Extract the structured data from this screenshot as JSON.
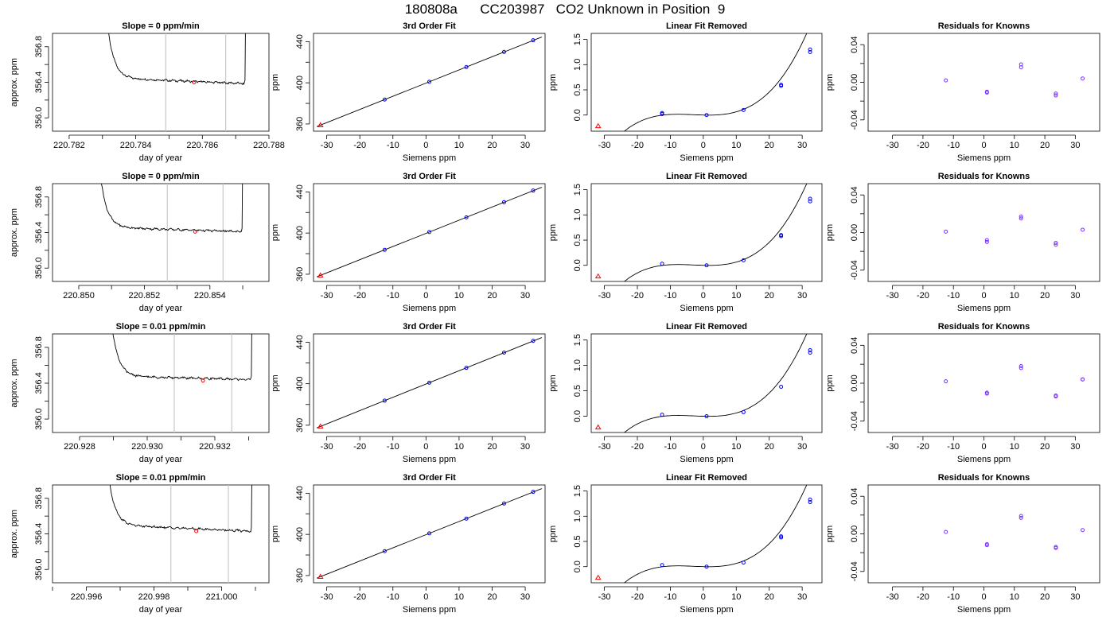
{
  "page": {
    "title": "180808a      CC203987   CO2 Unknown in Position  9"
  },
  "colors": {
    "background": "#ffffff",
    "trace": "#000000",
    "unknown_marker": "#ff0000",
    "known_marker": "#0000ff",
    "residual_marker": "#7a33ff",
    "window_lines": "#c8c8c8"
  },
  "chart_data": [
    {
      "type": "line",
      "row": 1,
      "panel": "timeseries",
      "title": "Slope =  0  ppm/min",
      "xlabel": "day of year",
      "ylabel": "approx. ppm",
      "xlim": [
        220.7815,
        220.788
      ],
      "ylim": [
        355.85,
        356.95
      ],
      "xticks": [
        "220.782",
        "220.784",
        "220.786",
        "220.788"
      ],
      "yticks": [
        "356.0",
        "356.4",
        "356.8"
      ],
      "trace": {
        "start": 220.7831,
        "end": 220.7873,
        "baseline_start": 356.45,
        "baseline_end": 356.385,
        "rise_start": 356.95,
        "rise_end": 356.95
      },
      "window": [
        220.7849,
        220.7867
      ],
      "marker": {
        "x": 220.78575,
        "y": 356.4,
        "color": "red"
      }
    },
    {
      "type": "scatter",
      "row": 1,
      "panel": "fit",
      "title": "3rd Order Fit",
      "xlabel": "Siemens ppm",
      "ylabel": "ppm",
      "xlim": [
        -34,
        36
      ],
      "ylim": [
        353,
        448
      ],
      "xticks": [
        -30,
        -20,
        -10,
        0,
        10,
        20,
        30
      ],
      "yticks": [
        360,
        400,
        440
      ],
      "fit_range": [
        -33,
        35
      ],
      "fit_line": {
        "intercept": 399.7,
        "slope": 1.28
      },
      "knowns": {
        "x": [
          -12.5,
          1.0,
          12.2,
          23.6,
          32.4
        ],
        "y": [
          383.7,
          401.0,
          415.3,
          430.0,
          441.3
        ]
      },
      "unknown": {
        "x": -31.9,
        "y": 358.8
      }
    },
    {
      "type": "scatter",
      "row": 1,
      "panel": "linear_removed",
      "title": "Linear Fit Removed",
      "xlabel": "Siemens ppm",
      "ylabel": "ppm",
      "xlim": [
        -34,
        36
      ],
      "ylim": [
        -0.32,
        1.62
      ],
      "xticks": [
        -30,
        -20,
        -10,
        0,
        10,
        20,
        30
      ],
      "yticks": [
        "0.0",
        "0.5",
        "1.0",
        "1.5"
      ],
      "fit_range": [
        -33,
        35
      ],
      "knowns": {
        "x": [
          -12.5,
          -12.5,
          1.0,
          12.2,
          23.6,
          23.6,
          32.4,
          32.4
        ],
        "y": [
          0.04,
          0.02,
          0.0,
          0.1,
          0.58,
          0.6,
          1.25,
          1.3
        ]
      },
      "unknown": {
        "x": -31.9,
        "y": -0.22
      }
    },
    {
      "type": "scatter",
      "row": 1,
      "panel": "residuals",
      "title": "Residuals for Knowns",
      "xlabel": "Siemens ppm",
      "ylabel": "ppm",
      "xlim": [
        -38,
        38
      ],
      "ylim": [
        -0.052,
        0.052
      ],
      "xticks": [
        -30,
        -20,
        -10,
        0,
        10,
        20,
        30
      ],
      "yticks": [
        "-0.04",
        "0.00",
        "0.04"
      ],
      "residuals": {
        "x": [
          -12.5,
          1.0,
          1.0,
          12.2,
          12.2,
          23.6,
          23.6,
          32.4
        ],
        "y": [
          0.002,
          -0.01,
          -0.011,
          0.019,
          0.016,
          -0.012,
          -0.014,
          0.004
        ]
      }
    },
    {
      "type": "line",
      "row": 2,
      "panel": "timeseries",
      "title": "Slope =  0  ppm/min",
      "xlabel": "day of year",
      "ylabel": "approx. ppm",
      "xlim": [
        220.8492,
        220.8558
      ],
      "ylim": [
        355.85,
        356.95
      ],
      "xticks": [
        "220.850",
        "220.852",
        "220.854"
      ],
      "yticks": [
        "356.0",
        "356.4",
        "356.8"
      ],
      "trace": {
        "start": 220.8506,
        "end": 220.855,
        "baseline_start": 356.46,
        "baseline_end": 356.41,
        "rise_start": 356.95,
        "rise_end": 356.95
      },
      "window": [
        220.8527,
        220.8544
      ],
      "marker": {
        "x": 220.85355,
        "y": 356.41,
        "color": "red"
      }
    },
    {
      "type": "scatter",
      "row": 2,
      "panel": "fit",
      "title": "3rd Order Fit",
      "xlabel": "Siemens ppm",
      "ylabel": "ppm",
      "xlim": [
        -34,
        36
      ],
      "ylim": [
        353,
        448
      ],
      "xticks": [
        -30,
        -20,
        -10,
        0,
        10,
        20,
        30
      ],
      "yticks": [
        360,
        400,
        440
      ],
      "fit_range": [
        -33,
        35
      ],
      "fit_line": {
        "intercept": 399.7,
        "slope": 1.28
      },
      "knowns": {
        "x": [
          -12.5,
          1.0,
          12.2,
          23.6,
          32.4
        ],
        "y": [
          383.7,
          401.0,
          415.3,
          430.0,
          441.3
        ]
      },
      "unknown": {
        "x": -31.9,
        "y": 358.8
      }
    },
    {
      "type": "scatter",
      "row": 2,
      "panel": "linear_removed",
      "title": "Linear Fit Removed",
      "xlabel": "Siemens ppm",
      "ylabel": "ppm",
      "xlim": [
        -34,
        36
      ],
      "ylim": [
        -0.32,
        1.62
      ],
      "xticks": [
        -30,
        -20,
        -10,
        0,
        10,
        20,
        30
      ],
      "yticks": [
        "0.0",
        "0.5",
        "1.0",
        "1.5"
      ],
      "fit_range": [
        -33,
        35
      ],
      "knowns": {
        "x": [
          -12.5,
          1.0,
          12.2,
          23.6,
          23.6,
          32.4,
          32.4
        ],
        "y": [
          0.03,
          0.0,
          0.1,
          0.58,
          0.6,
          1.27,
          1.32
        ]
      },
      "unknown": {
        "x": -31.9,
        "y": -0.22
      }
    },
    {
      "type": "scatter",
      "row": 2,
      "panel": "residuals",
      "title": "Residuals for Knowns",
      "xlabel": "Siemens ppm",
      "ylabel": "ppm",
      "xlim": [
        -38,
        38
      ],
      "ylim": [
        -0.052,
        0.052
      ],
      "xticks": [
        -30,
        -20,
        -10,
        0,
        10,
        20,
        30
      ],
      "yticks": [
        "-0.04",
        "0.00",
        "0.04"
      ],
      "residuals": {
        "x": [
          -12.5,
          1.0,
          1.0,
          12.2,
          12.2,
          23.6,
          23.6,
          32.4
        ],
        "y": [
          0.001,
          -0.008,
          -0.01,
          0.017,
          0.015,
          -0.011,
          -0.013,
          0.003
        ]
      }
    },
    {
      "type": "line",
      "row": 3,
      "panel": "timeseries",
      "title": "Slope =  0.01  ppm/min",
      "xlabel": "day of year",
      "ylabel": "approx. ppm",
      "xlim": [
        220.9272,
        220.9336
      ],
      "ylim": [
        355.85,
        356.95
      ],
      "xticks": [
        "220.928",
        "220.930",
        "220.932"
      ],
      "yticks": [
        "356.0",
        "356.4",
        "356.8"
      ],
      "trace": {
        "start": 220.9289,
        "end": 220.9331,
        "baseline_start": 356.48,
        "baseline_end": 356.44,
        "rise_start": 356.95,
        "rise_end": 356.95
      },
      "window": [
        220.9308,
        220.9325
      ],
      "marker": {
        "x": 220.93165,
        "y": 356.43,
        "color": "red"
      }
    },
    {
      "type": "scatter",
      "row": 3,
      "panel": "fit",
      "title": "3rd Order Fit",
      "xlabel": "Siemens ppm",
      "ylabel": "ppm",
      "xlim": [
        -34,
        36
      ],
      "ylim": [
        353,
        448
      ],
      "xticks": [
        -30,
        -20,
        -10,
        0,
        10,
        20,
        30
      ],
      "yticks": [
        360,
        400,
        440
      ],
      "fit_range": [
        -33,
        35
      ],
      "fit_line": {
        "intercept": 399.7,
        "slope": 1.28
      },
      "knowns": {
        "x": [
          -12.5,
          1.0,
          12.2,
          23.6,
          32.4
        ],
        "y": [
          383.7,
          401.0,
          415.3,
          430.0,
          441.3
        ]
      },
      "unknown": {
        "x": -31.9,
        "y": 358.8
      }
    },
    {
      "type": "scatter",
      "row": 3,
      "panel": "linear_removed",
      "title": "Linear Fit Removed",
      "xlabel": "Siemens ppm",
      "ylabel": "ppm",
      "xlim": [
        -34,
        36
      ],
      "ylim": [
        -0.32,
        1.62
      ],
      "xticks": [
        -30,
        -20,
        -10,
        0,
        10,
        20,
        30
      ],
      "yticks": [
        "0.0",
        "0.5",
        "1.0",
        "1.5"
      ],
      "fit_range": [
        -33,
        35
      ],
      "knowns": {
        "x": [
          -12.5,
          1.0,
          12.2,
          23.6,
          32.4,
          32.4
        ],
        "y": [
          0.03,
          0.0,
          0.08,
          0.58,
          1.25,
          1.3
        ]
      },
      "unknown": {
        "x": -31.9,
        "y": -0.22
      }
    },
    {
      "type": "scatter",
      "row": 3,
      "panel": "residuals",
      "title": "Residuals for Knowns",
      "xlabel": "Siemens ppm",
      "ylabel": "ppm",
      "xlim": [
        -38,
        38
      ],
      "ylim": [
        -0.052,
        0.052
      ],
      "xticks": [
        -30,
        -20,
        -10,
        0,
        10,
        20,
        30
      ],
      "yticks": [
        "-0.04",
        "0.00",
        "0.04"
      ],
      "residuals": {
        "x": [
          -12.5,
          1.0,
          1.0,
          12.2,
          12.2,
          23.6,
          23.6,
          32.4,
          32.4
        ],
        "y": [
          0.002,
          -0.01,
          -0.011,
          0.018,
          0.016,
          -0.013,
          -0.014,
          0.004,
          0.004
        ]
      }
    },
    {
      "type": "line",
      "row": 4,
      "panel": "timeseries",
      "title": "Slope =  0.01  ppm/min",
      "xlabel": "day of year",
      "ylabel": "approx. ppm",
      "xlim": [
        220.995,
        221.0014
      ],
      "ylim": [
        355.85,
        356.95
      ],
      "xticks": [
        "220.996",
        "220.998",
        "221.000"
      ],
      "yticks": [
        "356.0",
        "356.4",
        "356.8"
      ],
      "trace": {
        "start": 220.9966,
        "end": 221.0009,
        "baseline_start": 356.5,
        "baseline_end": 356.43,
        "rise_start": 356.95,
        "rise_end": 356.95
      },
      "window": [
        220.9985,
        221.0002
      ],
      "marker": {
        "x": 220.99925,
        "y": 356.43,
        "color": "red"
      }
    },
    {
      "type": "scatter",
      "row": 4,
      "panel": "fit",
      "title": "3rd Order Fit",
      "xlabel": "Siemens ppm",
      "ylabel": "ppm",
      "xlim": [
        -34,
        36
      ],
      "ylim": [
        353,
        448
      ],
      "xticks": [
        -30,
        -20,
        -10,
        0,
        10,
        20,
        30
      ],
      "yticks": [
        360,
        400,
        440
      ],
      "fit_range": [
        -33,
        35
      ],
      "fit_line": {
        "intercept": 399.7,
        "slope": 1.28
      },
      "knowns": {
        "x": [
          -12.5,
          1.0,
          12.2,
          23.6,
          32.4
        ],
        "y": [
          383.7,
          401.0,
          415.3,
          430.0,
          441.3
        ]
      },
      "unknown": {
        "x": -31.9,
        "y": 358.8
      }
    },
    {
      "type": "scatter",
      "row": 4,
      "panel": "linear_removed",
      "title": "Linear Fit Removed",
      "xlabel": "Siemens ppm",
      "ylabel": "ppm",
      "xlim": [
        -34,
        36
      ],
      "ylim": [
        -0.32,
        1.62
      ],
      "xticks": [
        -30,
        -20,
        -10,
        0,
        10,
        20,
        30
      ],
      "yticks": [
        "0.0",
        "0.5",
        "1.0",
        "1.5"
      ],
      "fit_range": [
        -33,
        35
      ],
      "knowns": {
        "x": [
          -12.5,
          1.0,
          12.2,
          23.6,
          23.6,
          32.4,
          32.4
        ],
        "y": [
          0.03,
          0.0,
          0.08,
          0.58,
          0.6,
          1.28,
          1.33
        ]
      },
      "unknown": {
        "x": -31.9,
        "y": -0.22
      }
    },
    {
      "type": "scatter",
      "row": 4,
      "panel": "residuals",
      "title": "Residuals for Knowns",
      "xlabel": "Siemens ppm",
      "ylabel": "ppm",
      "xlim": [
        -38,
        38
      ],
      "ylim": [
        -0.052,
        0.052
      ],
      "xticks": [
        -30,
        -20,
        -10,
        0,
        10,
        20,
        30
      ],
      "yticks": [
        "-0.04",
        "0.00",
        "0.04"
      ],
      "residuals": {
        "x": [
          -12.5,
          1.0,
          1.0,
          12.2,
          12.2,
          23.6,
          23.6,
          32.4
        ],
        "y": [
          0.002,
          -0.011,
          -0.012,
          0.019,
          0.017,
          -0.014,
          -0.015,
          0.004
        ]
      }
    }
  ]
}
